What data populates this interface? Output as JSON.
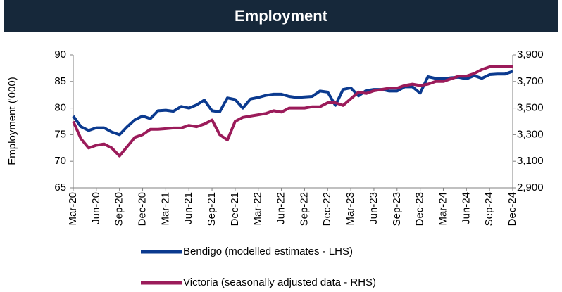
{
  "chart_data": {
    "type": "line",
    "title": "Employment",
    "ylabel": "Employment ('000)",
    "categories": [
      "Mar-20",
      null,
      null,
      "Jun-20",
      null,
      null,
      "Sep-20",
      null,
      null,
      "Dec-20",
      null,
      null,
      "Mar-21",
      null,
      null,
      "Jun-21",
      null,
      null,
      "Sep-21",
      null,
      null,
      "Dec-21",
      null,
      null,
      "Mar-22",
      null,
      null,
      "Jun-22",
      null,
      null,
      "Sep-22",
      null,
      null,
      "Dec-22",
      null,
      null,
      "Mar-23",
      null,
      null,
      "Jun-23",
      null,
      null,
      "Sep-23",
      null,
      null,
      "Dec-23",
      null,
      null,
      "Mar-24",
      null,
      null,
      "Jun-24",
      null,
      null,
      "Sep-24",
      null,
      null,
      "Dec-24"
    ],
    "series": [
      {
        "name": "Bendigo (modelled estimates - LHS)",
        "color": "#0b3a8f",
        "axis": "y",
        "values": [
          78.5,
          76.5,
          75.8,
          76.3,
          76.3,
          75.5,
          75.0,
          76.5,
          77.8,
          78.5,
          78.0,
          79.5,
          79.6,
          79.4,
          80.3,
          80.0,
          80.6,
          81.5,
          79.5,
          79.3,
          81.9,
          81.6,
          80.0,
          81.7,
          82.0,
          82.4,
          82.6,
          82.6,
          82.2,
          82.0,
          82.1,
          82.2,
          83.2,
          83.0,
          80.5,
          83.5,
          83.8,
          82.3,
          83.3,
          83.5,
          83.5,
          83.2,
          83.2,
          84.0,
          84.0,
          82.8,
          85.9,
          85.6,
          85.5,
          85.7,
          85.8,
          85.5,
          86.1,
          85.6,
          86.3,
          86.4,
          86.4,
          86.9
        ]
      },
      {
        "name": "Victoria (seasonally adjusted data - RHS)",
        "color": "#9b1b5a",
        "axis": "y2",
        "values": [
          3400,
          3270,
          3200,
          3220,
          3230,
          3200,
          3140,
          3210,
          3280,
          3300,
          3340,
          3340,
          3345,
          3350,
          3350,
          3370,
          3360,
          3380,
          3410,
          3300,
          3260,
          3400,
          3430,
          3440,
          3450,
          3460,
          3480,
          3470,
          3500,
          3500,
          3500,
          3510,
          3510,
          3540,
          3540,
          3520,
          3570,
          3620,
          3610,
          3630,
          3640,
          3650,
          3650,
          3670,
          3680,
          3670,
          3680,
          3700,
          3700,
          3720,
          3740,
          3740,
          3760,
          3790,
          3810,
          3810,
          3810,
          3810
        ]
      }
    ],
    "ylim": [
      65,
      90
    ],
    "yticks": [
      65,
      70,
      75,
      80,
      85,
      90
    ],
    "y2lim": [
      2900,
      3900
    ],
    "y2ticks": [
      {
        "value": 2900,
        "label": "2,900"
      },
      {
        "value": 3100,
        "label": "3,100"
      },
      {
        "value": 3300,
        "label": "3,300"
      },
      {
        "value": 3500,
        "label": "3,500"
      },
      {
        "value": 3700,
        "label": "3,700"
      },
      {
        "value": 3900,
        "label": "3,900"
      }
    ],
    "legend": "bottom"
  }
}
